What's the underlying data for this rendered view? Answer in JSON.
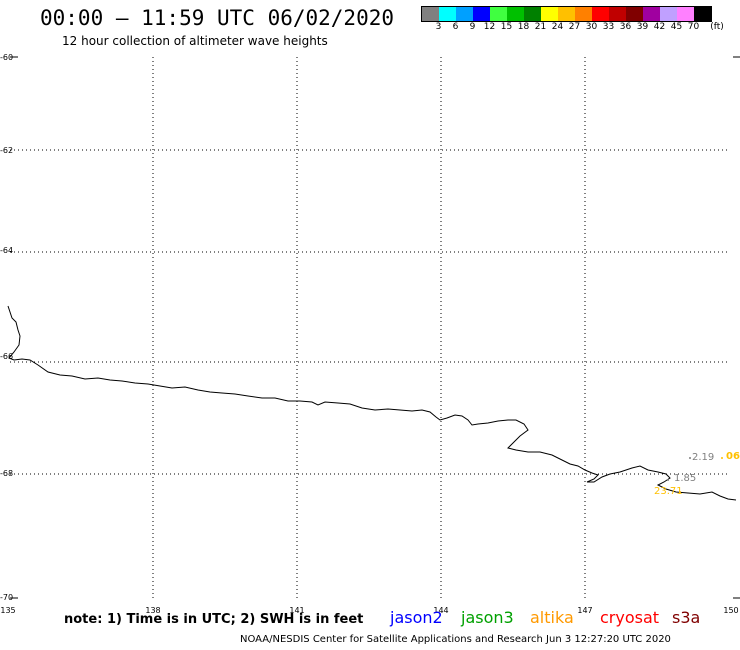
{
  "header": {
    "title": "00:00 – 11:59 UTC 06/02/2020",
    "subtitle": "12 hour collection of altimeter wave heights"
  },
  "legend": {
    "unit": "(ft)",
    "swatches": [
      {
        "color": "#808080",
        "label": "3"
      },
      {
        "color": "#00ffff",
        "label": "6"
      },
      {
        "color": "#00a0ff",
        "label": "9"
      },
      {
        "color": "#0000ff",
        "label": "12"
      },
      {
        "color": "#40ff40",
        "label": "15"
      },
      {
        "color": "#00c000",
        "label": "18"
      },
      {
        "color": "#008000",
        "label": "21"
      },
      {
        "color": "#ffff00",
        "label": "24"
      },
      {
        "color": "#ffc000",
        "label": "27"
      },
      {
        "color": "#ff8000",
        "label": "30"
      },
      {
        "color": "#ff0000",
        "label": "33"
      },
      {
        "color": "#c00000",
        "label": "36"
      },
      {
        "color": "#800000",
        "label": "39"
      },
      {
        "color": "#a000a0",
        "label": "42"
      },
      {
        "color": "#c0a0ff",
        "label": "45"
      },
      {
        "color": "#ff80ff",
        "label": "70"
      },
      {
        "color": "#000000",
        "label": ""
      }
    ]
  },
  "map": {
    "lat_labels": [
      "-60",
      "-62",
      "-64",
      "-66",
      "-68",
      "-70"
    ],
    "lon_labels": [
      "135",
      "138",
      "141",
      "144",
      "147",
      "150"
    ],
    "observations": [
      {
        "text": "2.19",
        "color": "#808080"
      },
      {
        "text": "06",
        "color": "#ffc000"
      },
      {
        "text": "1.85",
        "color": "#808080"
      },
      {
        "text": "23.71",
        "color": "#ffc000"
      }
    ]
  },
  "bottom": {
    "note": "note: 1) Time is in UTC; 2) SWH is in feet",
    "satellites": [
      {
        "name": "jason2",
        "color": "#0000ff"
      },
      {
        "name": "jason3",
        "color": "#00a000"
      },
      {
        "name": "altika",
        "color": "#ff9900"
      },
      {
        "name": "cryosat",
        "color": "#ff0000"
      },
      {
        "name": "s3a",
        "color": "#800000"
      }
    ],
    "footer": "NOAA/NESDIS Center for Satellite Applications and Research   Jun  3 12:27:20 UTC 2020"
  }
}
